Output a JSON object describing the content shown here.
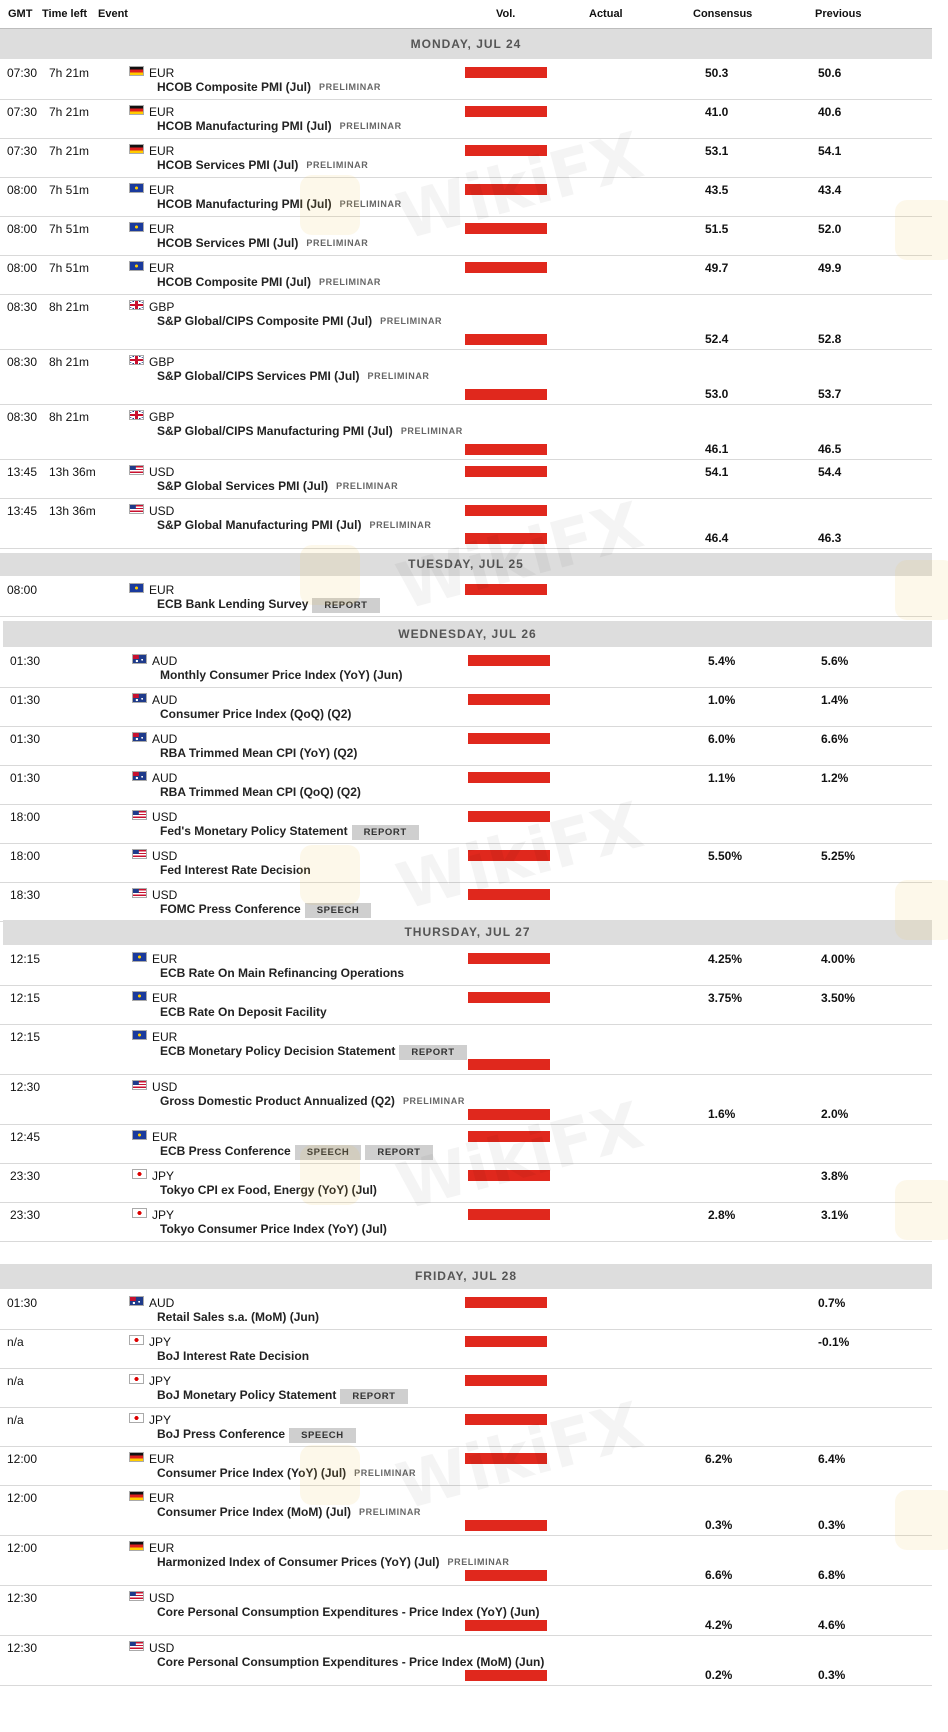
{
  "headers": {
    "gmt": "GMT",
    "time_left": "Time left",
    "event": "Event",
    "vol": "Vol.",
    "actual": "Actual",
    "consensus": "Consensus",
    "previous": "Previous"
  },
  "colors": {
    "volume_bar": "#e0281d",
    "day_header_bg": "#dddddd"
  },
  "watermark": "WikiFX",
  "days": [
    {
      "label": "MONDAY, JUL 24",
      "events": [
        {
          "time": "07:30",
          "left": "7h 21m",
          "currency": "EUR",
          "flag": "de",
          "name": "HCOB Composite PMI (Jul)",
          "tag": "PRELIMINAR",
          "badges": [],
          "consensus": "50.3",
          "previous": "50.6"
        },
        {
          "time": "07:30",
          "left": "7h 21m",
          "currency": "EUR",
          "flag": "de",
          "name": "HCOB Manufacturing PMI (Jul)",
          "tag": "PRELIMINAR",
          "badges": [],
          "consensus": "41.0",
          "previous": "40.6"
        },
        {
          "time": "07:30",
          "left": "7h 21m",
          "currency": "EUR",
          "flag": "de",
          "name": "HCOB Services PMI (Jul)",
          "tag": "PRELIMINAR",
          "badges": [],
          "consensus": "53.1",
          "previous": "54.1"
        },
        {
          "time": "08:00",
          "left": "7h 51m",
          "currency": "EUR",
          "flag": "eu",
          "name": "HCOB Manufacturing PMI (Jul)",
          "tag": "PRELIMINAR",
          "badges": [],
          "consensus": "43.5",
          "previous": "43.4"
        },
        {
          "time": "08:00",
          "left": "7h 51m",
          "currency": "EUR",
          "flag": "eu",
          "name": "HCOB Services PMI (Jul)",
          "tag": "PRELIMINAR",
          "badges": [],
          "consensus": "51.5",
          "previous": "52.0"
        },
        {
          "time": "08:00",
          "left": "7h 51m",
          "currency": "EUR",
          "flag": "eu",
          "name": "HCOB Composite PMI (Jul)",
          "tag": "PRELIMINAR",
          "badges": [],
          "consensus": "49.7",
          "previous": "49.9"
        },
        {
          "time": "08:30",
          "left": "8h 21m",
          "currency": "GBP",
          "flag": "gb",
          "name": "S&P Global/CIPS Composite PMI (Jul)",
          "tag": "PRELIMINAR",
          "badges": [],
          "consensus": "52.4",
          "previous": "52.8"
        },
        {
          "time": "08:30",
          "left": "8h 21m",
          "currency": "GBP",
          "flag": "gb",
          "name": "S&P Global/CIPS Services PMI (Jul)",
          "tag": "PRELIMINAR",
          "badges": [],
          "consensus": "53.0",
          "previous": "53.7"
        },
        {
          "time": "08:30",
          "left": "8h 21m",
          "currency": "GBP",
          "flag": "gb",
          "name": "S&P Global/CIPS Manufacturing PMI (Jul)",
          "tag": "PRELIMINAR",
          "badges": [],
          "consensus": "46.1",
          "previous": "46.5"
        },
        {
          "time": "13:45",
          "left": "13h 36m",
          "currency": "USD",
          "flag": "us",
          "name": "S&P Global Services PMI (Jul)",
          "tag": "PRELIMINAR",
          "badges": [],
          "consensus": "54.1",
          "previous": "54.4"
        },
        {
          "time": "13:45",
          "left": "13h 36m",
          "currency": "USD",
          "flag": "us",
          "name": "S&P Global Manufacturing PMI (Jul)",
          "tag": "PRELIMINAR",
          "badges": [],
          "consensus": "46.4",
          "previous": "46.3"
        }
      ]
    },
    {
      "label": "TUESDAY, JUL 25",
      "events": [
        {
          "time": "08:00",
          "left": "",
          "currency": "EUR",
          "flag": "eu",
          "name": "ECB Bank Lending Survey",
          "tag": "",
          "badges": [
            "REPORT"
          ],
          "consensus": "",
          "previous": ""
        }
      ]
    },
    {
      "label": "WEDNESDAY, JUL 26",
      "events": [
        {
          "time": "01:30",
          "left": "",
          "currency": "AUD",
          "flag": "au",
          "name": "Monthly Consumer Price Index (YoY) (Jun)",
          "tag": "",
          "badges": [],
          "consensus": "5.4%",
          "previous": "5.6%"
        },
        {
          "time": "01:30",
          "left": "",
          "currency": "AUD",
          "flag": "au",
          "name": "Consumer Price Index (QoQ) (Q2)",
          "tag": "",
          "badges": [],
          "consensus": "1.0%",
          "previous": "1.4%"
        },
        {
          "time": "01:30",
          "left": "",
          "currency": "AUD",
          "flag": "au",
          "name": "RBA Trimmed Mean CPI (YoY) (Q2)",
          "tag": "",
          "badges": [],
          "consensus": "6.0%",
          "previous": "6.6%"
        },
        {
          "time": "01:30",
          "left": "",
          "currency": "AUD",
          "flag": "au",
          "name": "RBA Trimmed Mean CPI (QoQ) (Q2)",
          "tag": "",
          "badges": [],
          "consensus": "1.1%",
          "previous": "1.2%"
        },
        {
          "time": "18:00",
          "left": "",
          "currency": "USD",
          "flag": "us",
          "name": "Fed's Monetary Policy Statement",
          "tag": "",
          "badges": [
            "REPORT"
          ],
          "consensus": "",
          "previous": ""
        },
        {
          "time": "18:00",
          "left": "",
          "currency": "USD",
          "flag": "us",
          "name": "Fed Interest Rate Decision",
          "tag": "",
          "badges": [],
          "consensus": "5.50%",
          "previous": "5.25%"
        },
        {
          "time": "18:30",
          "left": "",
          "currency": "USD",
          "flag": "us",
          "name": "FOMC Press Conference",
          "tag": "",
          "badges": [
            "SPEECH"
          ],
          "consensus": "",
          "previous": ""
        }
      ]
    },
    {
      "label": "THURSDAY, JUL 27",
      "events": [
        {
          "time": "12:15",
          "left": "",
          "currency": "EUR",
          "flag": "eu",
          "name": "ECB Rate On Main Refinancing Operations",
          "tag": "",
          "badges": [],
          "consensus": "4.25%",
          "previous": "4.00%"
        },
        {
          "time": "12:15",
          "left": "",
          "currency": "EUR",
          "flag": "eu",
          "name": "ECB Rate On Deposit Facility",
          "tag": "",
          "badges": [],
          "consensus": "3.75%",
          "previous": "3.50%"
        },
        {
          "time": "12:15",
          "left": "",
          "currency": "EUR",
          "flag": "eu",
          "name": "ECB Monetary Policy Decision Statement",
          "tag": "",
          "badges": [
            "REPORT"
          ],
          "consensus": "",
          "previous": ""
        },
        {
          "time": "12:30",
          "left": "",
          "currency": "USD",
          "flag": "us",
          "name": "Gross Domestic Product Annualized (Q2)",
          "tag": "PRELIMINAR",
          "badges": [],
          "consensus": "1.6%",
          "previous": "2.0%"
        },
        {
          "time": "12:45",
          "left": "",
          "currency": "EUR",
          "flag": "eu",
          "name": "ECB Press Conference",
          "tag": "",
          "badges": [
            "SPEECH",
            "REPORT"
          ],
          "consensus": "",
          "previous": ""
        },
        {
          "time": "23:30",
          "left": "",
          "currency": "JPY",
          "flag": "jp",
          "name": "Tokyo CPI ex Food, Energy (YoY) (Jul)",
          "tag": "",
          "badges": [],
          "consensus": "",
          "previous": "3.8%"
        },
        {
          "time": "23:30",
          "left": "",
          "currency": "JPY",
          "flag": "jp",
          "name": "Tokyo Consumer Price Index (YoY) (Jul)",
          "tag": "",
          "badges": [],
          "consensus": "2.8%",
          "previous": "3.1%"
        }
      ]
    },
    {
      "label": "FRIDAY, JUL 28",
      "events": [
        {
          "time": "01:30",
          "left": "",
          "currency": "AUD",
          "flag": "au",
          "name": "Retail Sales s.a. (MoM) (Jun)",
          "tag": "",
          "badges": [],
          "consensus": "",
          "previous": "0.7%"
        },
        {
          "time": "n/a",
          "left": "",
          "currency": "JPY",
          "flag": "jp",
          "name": "BoJ Interest Rate Decision",
          "tag": "",
          "badges": [],
          "consensus": "",
          "previous": "-0.1%"
        },
        {
          "time": "n/a",
          "left": "",
          "currency": "JPY",
          "flag": "jp",
          "name": "BoJ Monetary Policy Statement",
          "tag": "",
          "badges": [
            "REPORT"
          ],
          "consensus": "",
          "previous": ""
        },
        {
          "time": "n/a",
          "left": "",
          "currency": "JPY",
          "flag": "jp",
          "name": "BoJ Press Conference",
          "tag": "",
          "badges": [
            "SPEECH"
          ],
          "consensus": "",
          "previous": ""
        },
        {
          "time": "12:00",
          "left": "",
          "currency": "EUR",
          "flag": "de",
          "name": "Consumer Price Index (YoY) (Jul)",
          "tag": "PRELIMINAR",
          "badges": [],
          "consensus": "6.2%",
          "previous": "6.4%"
        },
        {
          "time": "12:00",
          "left": "",
          "currency": "EUR",
          "flag": "de",
          "name": "Consumer Price Index (MoM) (Jul)",
          "tag": "PRELIMINAR",
          "badges": [],
          "consensus": "0.3%",
          "previous": "0.3%"
        },
        {
          "time": "12:00",
          "left": "",
          "currency": "EUR",
          "flag": "de",
          "name": "Harmonized Index of Consumer Prices (YoY) (Jul)",
          "tag": "PRELIMINAR",
          "badges": [],
          "consensus": "6.6%",
          "previous": "6.8%"
        },
        {
          "time": "12:30",
          "left": "",
          "currency": "USD",
          "flag": "us",
          "name": "Core Personal Consumption Expenditures - Price Index (YoY) (Jun)",
          "tag": "",
          "badges": [],
          "consensus": "4.2%",
          "previous": "4.6%"
        },
        {
          "time": "12:30",
          "left": "",
          "currency": "USD",
          "flag": "us",
          "name": "Core Personal Consumption Expenditures - Price Index (MoM) (Jun)",
          "tag": "",
          "badges": [],
          "consensus": "0.2%",
          "previous": "0.3%"
        }
      ]
    }
  ]
}
